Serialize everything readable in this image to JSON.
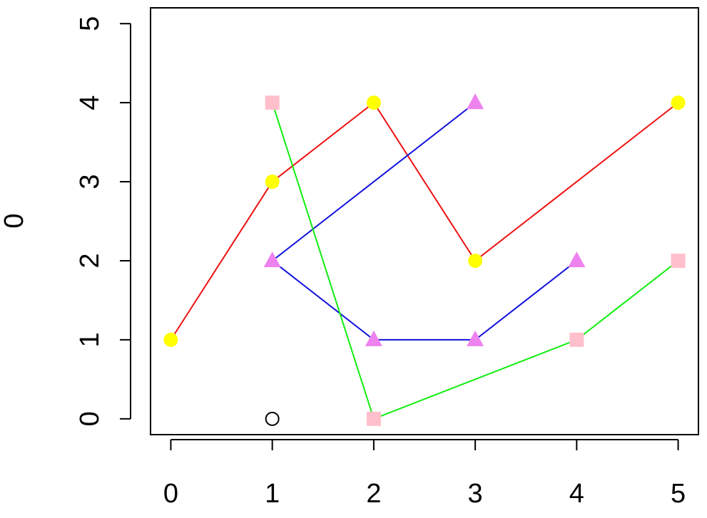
{
  "chart_data": {
    "type": "scatter",
    "ylabel": "0",
    "xlim": [
      -0.2,
      5.2
    ],
    "ylim": [
      -0.2,
      5.2
    ],
    "xticks": [
      0,
      1,
      2,
      3,
      4,
      5
    ],
    "yticks": [
      0,
      1,
      2,
      3,
      4,
      5
    ],
    "grid": false,
    "series": [
      {
        "x": [
          0,
          1,
          2,
          3,
          5
        ],
        "values": [
          1,
          3,
          4,
          2,
          4
        ],
        "color": "#ee1111",
        "marker_color": "#ffff00",
        "marker": "circle",
        "line": true
      },
      {
        "x": [
          3,
          1,
          2,
          3,
          4
        ],
        "values": [
          4,
          2,
          1,
          1,
          2
        ],
        "color": "#1111dd",
        "marker_color": "#ee82ee",
        "marker": "triangle",
        "line": true
      },
      {
        "x": [
          1,
          2,
          4,
          5
        ],
        "values": [
          4,
          0,
          1,
          2
        ],
        "color": "#11ee11",
        "marker_color": "#ffc0cb",
        "marker": "square",
        "line": true
      },
      {
        "x": [
          1
        ],
        "values": [
          0
        ],
        "color": "#000000",
        "marker": "open-circle",
        "line": false
      }
    ]
  }
}
